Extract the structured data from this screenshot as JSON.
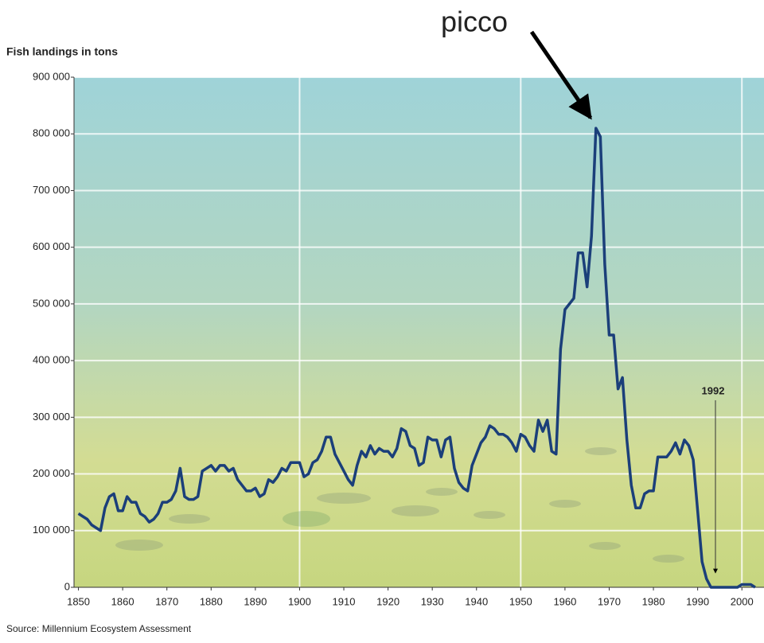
{
  "chart_data": {
    "type": "line",
    "y_label": "Fish landings in tons",
    "source": "Source: Millennium Ecosystem Assessment",
    "annotations": [
      "picco",
      "1992"
    ],
    "color": "#1b3f7a",
    "x": [
      1850,
      1851,
      1852,
      1853,
      1854,
      1855,
      1856,
      1857,
      1858,
      1859,
      1860,
      1861,
      1862,
      1863,
      1864,
      1865,
      1866,
      1867,
      1868,
      1869,
      1870,
      1871,
      1872,
      1873,
      1874,
      1875,
      1876,
      1877,
      1878,
      1879,
      1880,
      1881,
      1882,
      1883,
      1884,
      1885,
      1886,
      1887,
      1888,
      1889,
      1890,
      1891,
      1892,
      1893,
      1894,
      1895,
      1896,
      1897,
      1898,
      1899,
      1900,
      1901,
      1902,
      1903,
      1904,
      1905,
      1906,
      1907,
      1908,
      1909,
      1910,
      1911,
      1912,
      1913,
      1914,
      1915,
      1916,
      1917,
      1918,
      1919,
      1920,
      1921,
      1922,
      1923,
      1924,
      1925,
      1926,
      1927,
      1928,
      1929,
      1930,
      1931,
      1932,
      1933,
      1934,
      1935,
      1936,
      1937,
      1938,
      1939,
      1940,
      1941,
      1942,
      1943,
      1944,
      1945,
      1946,
      1947,
      1948,
      1949,
      1950,
      1951,
      1952,
      1953,
      1954,
      1955,
      1956,
      1957,
      1958,
      1959,
      1960,
      1961,
      1962,
      1963,
      1964,
      1965,
      1966,
      1967,
      1968,
      1969,
      1970,
      1971,
      1972,
      1973,
      1974,
      1975,
      1976,
      1977,
      1978,
      1979,
      1980,
      1981,
      1982,
      1983,
      1984,
      1985,
      1986,
      1987,
      1988,
      1989,
      1990,
      1991,
      1992,
      1993,
      1994,
      1995,
      1996,
      1997,
      1998,
      1999,
      2000,
      2001,
      2002,
      2003
    ],
    "values": [
      130000,
      125000,
      120000,
      110000,
      105000,
      100000,
      140000,
      160000,
      165000,
      135000,
      135000,
      160000,
      150000,
      150000,
      130000,
      125000,
      115000,
      120000,
      130000,
      150000,
      150000,
      155000,
      170000,
      210000,
      160000,
      155000,
      155000,
      160000,
      205000,
      210000,
      215000,
      205000,
      215000,
      215000,
      205000,
      210000,
      190000,
      180000,
      170000,
      170000,
      175000,
      160000,
      165000,
      190000,
      185000,
      195000,
      210000,
      205000,
      220000,
      220000,
      220000,
      195000,
      200000,
      220000,
      225000,
      240000,
      265000,
      265000,
      235000,
      220000,
      205000,
      190000,
      180000,
      215000,
      240000,
      230000,
      250000,
      235000,
      245000,
      240000,
      240000,
      230000,
      245000,
      280000,
      275000,
      250000,
      245000,
      215000,
      220000,
      265000,
      260000,
      260000,
      230000,
      260000,
      265000,
      210000,
      185000,
      175000,
      170000,
      215000,
      235000,
      255000,
      265000,
      285000,
      280000,
      270000,
      270000,
      265000,
      255000,
      240000,
      270000,
      265000,
      250000,
      240000,
      295000,
      275000,
      295000,
      240000,
      235000,
      420000,
      490000,
      500000,
      510000,
      590000,
      590000,
      530000,
      620000,
      810000,
      795000,
      570000,
      445000,
      445000,
      350000,
      370000,
      260000,
      180000,
      140000,
      140000,
      165000,
      170000,
      170000,
      230000,
      230000,
      230000,
      240000,
      255000,
      235000,
      260000,
      250000,
      225000,
      135000,
      45000,
      15000,
      0,
      0,
      0,
      0,
      0,
      0,
      0,
      5000,
      5000,
      5000,
      0
    ],
    "xlim": [
      1849,
      2005
    ],
    "ylim": [
      0,
      900000
    ],
    "xticks": [
      1850,
      1860,
      1870,
      1880,
      1890,
      1900,
      1910,
      1920,
      1930,
      1940,
      1950,
      1960,
      1970,
      1980,
      1990,
      2000
    ],
    "yticks": [
      0,
      {
        "value": 100000,
        "label": "100 000"
      },
      {
        "value": 200000,
        "label": "200 000"
      },
      {
        "value": 300000,
        "label": "300 000"
      },
      {
        "value": 400000,
        "label": "400 000"
      },
      {
        "value": 500000,
        "label": "500 000"
      },
      {
        "value": 600000,
        "label": "600 000"
      },
      {
        "value": 700000,
        "label": "700 000"
      },
      {
        "value": 800000,
        "label": "800 000"
      },
      {
        "value": {
          "value": 900000,
          "label": "900 000"
        },
        "label": null
      }
    ],
    "grid": true
  }
}
